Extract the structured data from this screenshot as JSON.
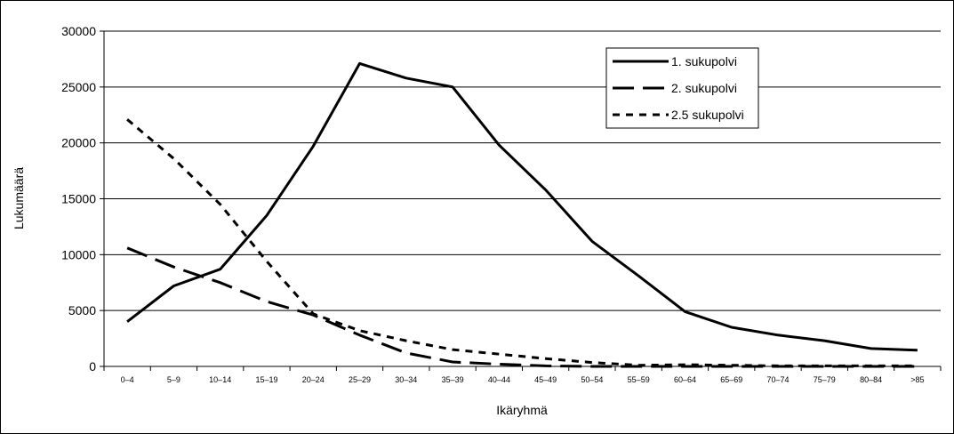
{
  "chart_data": {
    "type": "line",
    "title": "",
    "xlabel": "Ikäryhmä",
    "ylabel": "Lukumäärä",
    "ylim": [
      0,
      30000
    ],
    "yticks": [
      0,
      5000,
      10000,
      15000,
      20000,
      25000,
      30000
    ],
    "grid": true,
    "legend_position": "top-right",
    "categories": [
      "0–4",
      "5–9",
      "10–14",
      "15–19",
      "20–24",
      "25–29",
      "30–34",
      "35–39",
      "40–44",
      "45–49",
      "50–54",
      "55–59",
      "60–64",
      "65–69",
      "70–74",
      "75–79",
      "80–84",
      ">85"
    ],
    "series": [
      {
        "name": "1. sukupolvi",
        "style": "solid",
        "color": "#000000",
        "values": [
          4000,
          7200,
          8700,
          13500,
          19700,
          27100,
          25800,
          25000,
          19800,
          15800,
          11200,
          8100,
          4900,
          3500,
          2800,
          2300,
          1600,
          1450
        ]
      },
      {
        "name": "2. sukupolvi",
        "style": "long-dash",
        "color": "#000000",
        "values": [
          10600,
          8900,
          7500,
          5800,
          4600,
          2800,
          1200,
          400,
          200,
          50,
          0,
          0,
          0,
          0,
          0,
          0,
          0,
          0
        ]
      },
      {
        "name": "2.5 sukupolvi",
        "style": "short-dash",
        "color": "#000000",
        "values": [
          22100,
          18600,
          14500,
          9400,
          4700,
          3200,
          2300,
          1500,
          1100,
          700,
          350,
          100,
          150,
          100,
          50,
          50,
          50,
          50
        ]
      }
    ]
  }
}
